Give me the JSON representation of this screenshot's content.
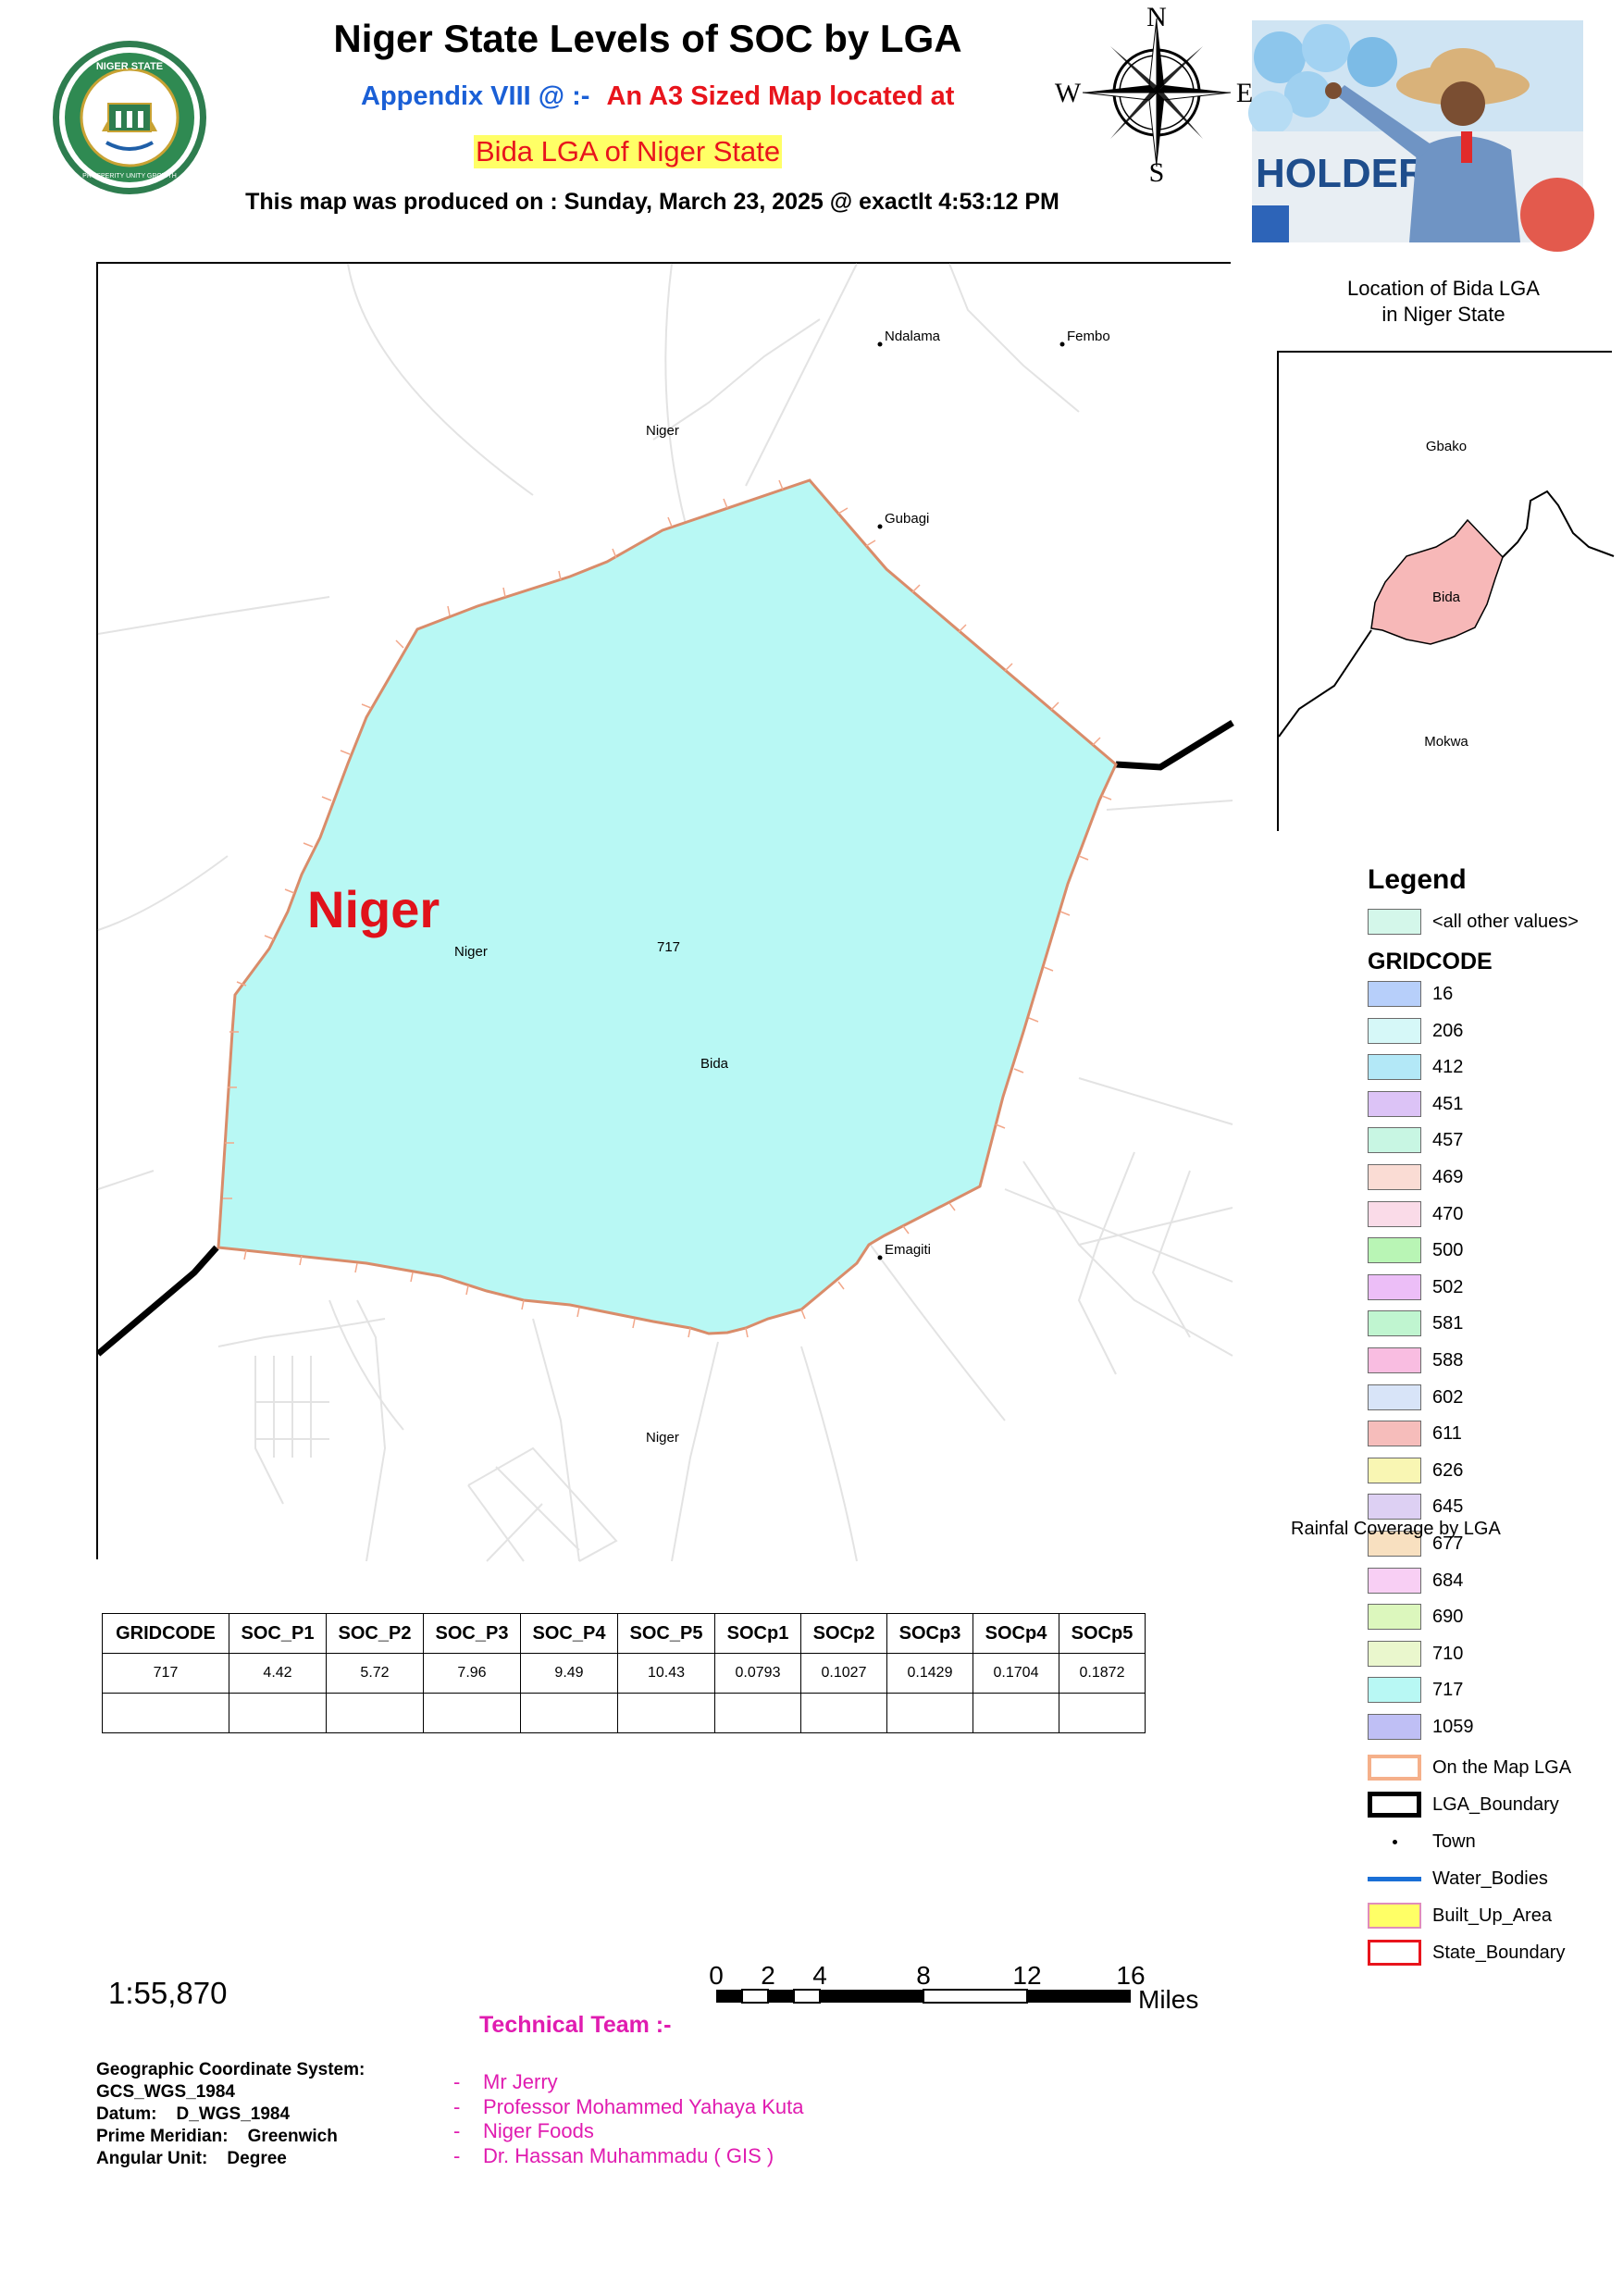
{
  "header": {
    "title": "Niger State Levels of SOC by LGA",
    "appendix_label": "Appendix VIII @ :-",
    "appendix_detail": "An A3 Sized Map located at",
    "location_line": "Bida LGA of Niger State",
    "produced_on": "This map was produced on : Sunday, March 23, 2025 @ exactlt 4:53:12 PM"
  },
  "seal": {
    "text": "NIGER STATE",
    "motto": "PROSPERITY UNITY GROWTH"
  },
  "compass": {
    "north": "N",
    "south": "S",
    "east": "E",
    "west": "W"
  },
  "photo": {
    "banner_text": "HOLDER"
  },
  "main_map": {
    "state_label": "Niger",
    "polygon_code": "717",
    "lga_label": "Bida",
    "region_labels": [
      "Niger",
      "Niger",
      "Niger"
    ],
    "towns": [
      "Ndalama",
      "Fembo",
      "Gubagi",
      "Emagiti"
    ],
    "fill_color": "#b8f8f4",
    "state_label_color": "#e0121b"
  },
  "inset": {
    "title_line1": "Location of Bida LGA",
    "title_line2": "in Niger State",
    "labels": {
      "top": "Gbako",
      "center": "Bida",
      "bottom": "Mokwa"
    },
    "highlight_color": "#f7b8b8"
  },
  "legend": {
    "title": "Legend",
    "other_values_label": "<all other values>",
    "gridcode_title": "GRIDCODE",
    "gridcodes": [
      {
        "label": "16",
        "color": "#b7cffa"
      },
      {
        "label": "206",
        "color": "#d6f8f8"
      },
      {
        "label": "412",
        "color": "#b3e8f7"
      },
      {
        "label": "451",
        "color": "#dcc3f6"
      },
      {
        "label": "457",
        "color": "#c8f6e3"
      },
      {
        "label": "469",
        "color": "#fadcd4"
      },
      {
        "label": "470",
        "color": "#fadbe8"
      },
      {
        "label": "500",
        "color": "#b9f5b5"
      },
      {
        "label": "502",
        "color": "#ecbef7"
      },
      {
        "label": "581",
        "color": "#c0f5d0"
      },
      {
        "label": "588",
        "color": "#f9bde1"
      },
      {
        "label": "602",
        "color": "#d8e4f8"
      },
      {
        "label": "611",
        "color": "#f6bdbb"
      },
      {
        "label": "626",
        "color": "#f9f6b3"
      },
      {
        "label": "645",
        "color": "#ddd0f3"
      },
      {
        "label": "677",
        "color": "#f8e0c0"
      },
      {
        "label": "684",
        "color": "#f8cff4"
      },
      {
        "label": "690",
        "color": "#dcf7bd"
      },
      {
        "label": "710",
        "color": "#eaf7cd"
      },
      {
        "label": "717",
        "color": "#b8f8f4"
      },
      {
        "label": "1059",
        "color": "#bfbff5"
      }
    ],
    "symbols": [
      {
        "label": "On the Map LGA"
      },
      {
        "label": "LGA_Boundary"
      },
      {
        "label": "Town"
      },
      {
        "label": "Water_Bodies",
        "color": "#1a6fd6"
      },
      {
        "label": "Built_Up_Area",
        "color": "#ffff66"
      },
      {
        "label": "State_Boundary",
        "color": "#e8141c"
      }
    ],
    "rainfall_label": "Rainfal Coverage by LGA"
  },
  "soc_table": {
    "headers": [
      "GRIDCODE",
      "SOC_P1",
      "SOC_P2",
      "SOC_P3",
      "SOC_P4",
      "SOC_P5",
      "SOCp1",
      "SOCp2",
      "SOCp3",
      "SOCp4",
      "SOCp5"
    ],
    "rows": [
      [
        "717",
        "4.42",
        "5.72",
        "7.96",
        "9.49",
        "10.43",
        "0.0793",
        "0.1027",
        "0.1429",
        "0.1704",
        "0.1872"
      ],
      [
        "",
        "",
        "",
        "",
        "",
        "",
        "",
        "",
        "",
        "",
        ""
      ]
    ]
  },
  "scale": {
    "ratio": "1:55,870",
    "ticks": [
      "0",
      "2",
      "4",
      "8",
      "12",
      "16"
    ],
    "units": "Miles"
  },
  "coordinate_system": {
    "line1": "Geographic Coordinate System:",
    "line2": "GCS_WGS_1984",
    "line3": "Datum:    D_WGS_1984",
    "line4": "Prime Meridian:    Greenwich",
    "line5": "Angular Unit:    Degree"
  },
  "technical_team": {
    "title": "Technical Team :-",
    "members": [
      "Mr Jerry",
      "Professor Mohammed Yahaya Kuta",
      "Niger Foods",
      "Dr. Hassan Muhammadu ( GIS )"
    ]
  }
}
